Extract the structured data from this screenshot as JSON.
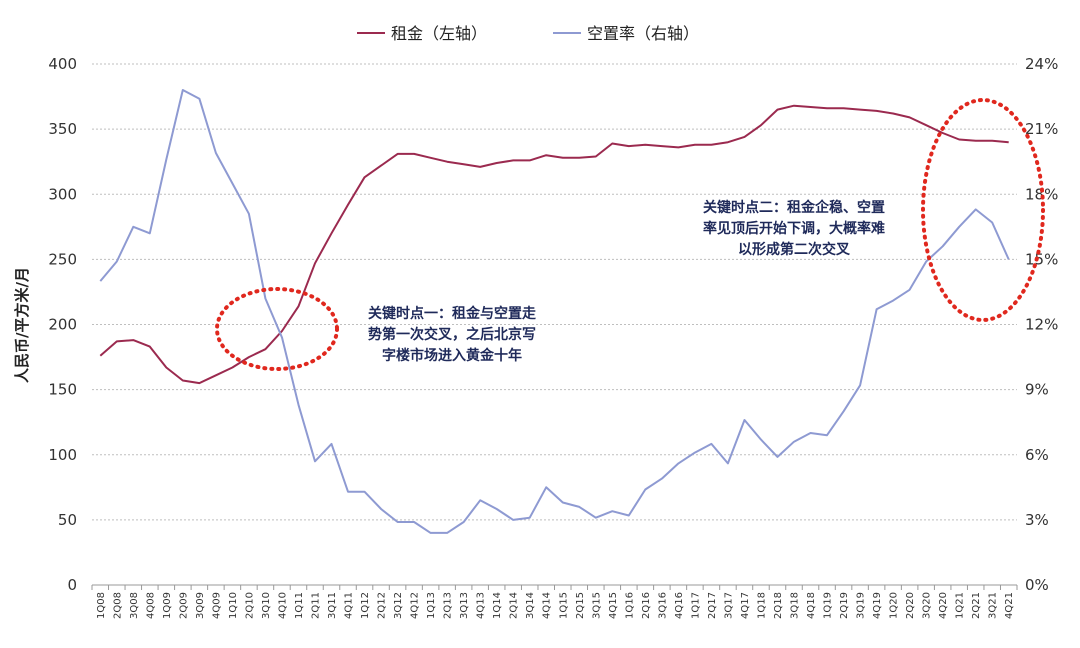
{
  "chart_data": {
    "type": "line",
    "categories": [
      "1Q08",
      "2Q08",
      "3Q08",
      "4Q08",
      "1Q09",
      "2Q09",
      "3Q09",
      "4Q09",
      "1Q10",
      "2Q10",
      "3Q10",
      "4Q10",
      "1Q11",
      "2Q11",
      "3Q11",
      "4Q11",
      "1Q12",
      "2Q12",
      "3Q12",
      "4Q12",
      "1Q13",
      "2Q13",
      "3Q13",
      "4Q13",
      "1Q14",
      "2Q14",
      "3Q14",
      "4Q14",
      "1Q15",
      "2Q15",
      "3Q15",
      "4Q15",
      "1Q16",
      "2Q16",
      "3Q16",
      "4Q16",
      "1Q17",
      "2Q17",
      "3Q17",
      "4Q17",
      "1Q18",
      "2Q18",
      "3Q18",
      "4Q18",
      "1Q19",
      "2Q19",
      "3Q19",
      "4Q19",
      "1Q20",
      "2Q20",
      "3Q20",
      "4Q20",
      "1Q21",
      "2Q21",
      "3Q21",
      "4Q21"
    ],
    "series": [
      {
        "name": "租金（左轴）",
        "axis": "left",
        "color": "#9b2a4f",
        "values": [
          176,
          187,
          188,
          183,
          167,
          157,
          155,
          161,
          167,
          175,
          181,
          195,
          214,
          247,
          270,
          292,
          313,
          322,
          331,
          331,
          328,
          325,
          323,
          321,
          324,
          326,
          326,
          330,
          328,
          328,
          329,
          339,
          337,
          338,
          337,
          336,
          338,
          338,
          340,
          344,
          353,
          365,
          368,
          367,
          366,
          366,
          365,
          364,
          362,
          359,
          353,
          347,
          342,
          341,
          341,
          340
        ]
      },
      {
        "name": "空置率（右轴）",
        "axis": "right",
        "color": "#8e9ad2",
        "values": [
          14.0,
          14.9,
          16.5,
          16.2,
          19.6,
          22.8,
          22.4,
          19.9,
          18.5,
          17.1,
          13.2,
          11.4,
          8.3,
          5.7,
          6.5,
          4.3,
          4.3,
          3.5,
          2.9,
          2.9,
          2.4,
          2.4,
          2.9,
          3.9,
          3.5,
          3.0,
          3.1,
          4.5,
          3.8,
          3.6,
          3.1,
          3.4,
          3.2,
          4.4,
          4.9,
          5.6,
          6.1,
          6.5,
          5.6,
          7.6,
          6.7,
          5.9,
          6.6,
          7.0,
          6.9,
          8.0,
          9.2,
          12.7,
          13.1,
          13.6,
          14.9,
          15.6,
          16.5,
          17.3,
          16.7,
          15.0
        ]
      }
    ],
    "y_left": {
      "label": "人民币/平方米/月",
      "min": 0,
      "max": 400,
      "ticks": [
        0,
        50,
        100,
        150,
        200,
        250,
        300,
        350,
        400
      ]
    },
    "y_right": {
      "min": 0,
      "max": 24,
      "ticks": [
        0,
        3,
        6,
        9,
        12,
        15,
        18,
        21,
        24
      ],
      "tick_labels": [
        "0%",
        "3%",
        "6%",
        "9%",
        "12%",
        "15%",
        "18%",
        "21%",
        "24%"
      ]
    },
    "grid": true,
    "legend": "top",
    "legend_items": [
      {
        "text": "租金（左轴）",
        "color": "#9b2a4f"
      },
      {
        "text": "空置率（右轴）",
        "color": "#8e9ad2"
      }
    ],
    "annotations": [
      {
        "lines": [
          "关键时点一：租金与空置走",
          "势第一次交叉，之后北京写",
          "字楼市场进入黄金十年"
        ],
        "color": "#e0281e"
      },
      {
        "lines": [
          "关键时点二：租金企稳、空置",
          "率见顶后开始下调，大概率难",
          "以形成第二次交叉"
        ],
        "color": "#e0281e"
      }
    ]
  }
}
